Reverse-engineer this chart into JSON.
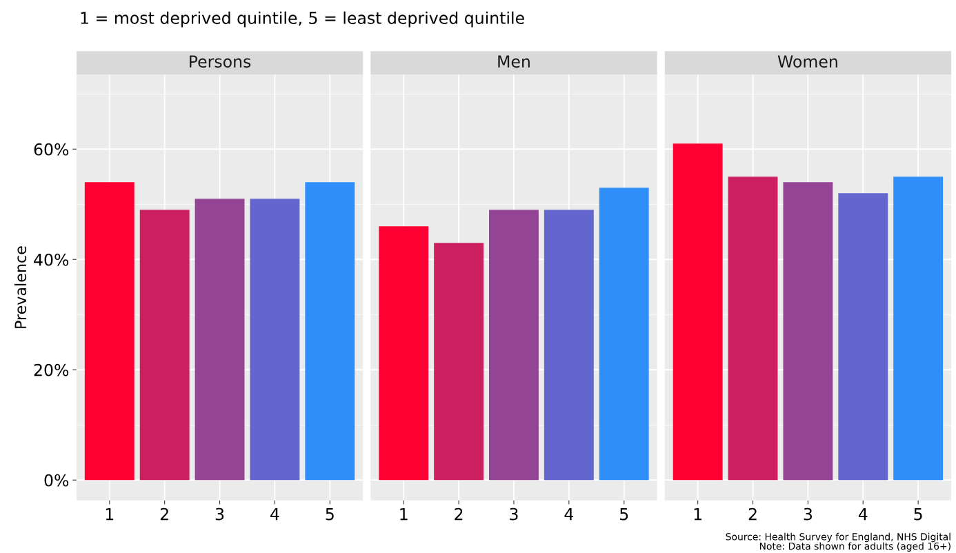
{
  "chart_data": [
    {
      "type": "bar",
      "title": "Persons",
      "subtitle": "1 = most deprived quintile, 5 = least deprived quintile",
      "ylabel": "Prevalence",
      "categories": [
        "1",
        "2",
        "3",
        "4",
        "5"
      ],
      "values": [
        54,
        49,
        51,
        51,
        54
      ],
      "colors": [
        "#ff0033",
        "#cc2060",
        "#944494",
        "#6366cc",
        "#2e8ff8"
      ],
      "ylim": [
        -3.7,
        73.5
      ],
      "yticks": [
        {
          "value": 0,
          "label": "0%"
        },
        {
          "value": 20,
          "label": "20%"
        },
        {
          "value": 40,
          "label": "40%"
        },
        {
          "value": 60,
          "label": "60%"
        }
      ],
      "grid": true
    },
    {
      "type": "bar",
      "title": "Men",
      "categories": [
        "1",
        "2",
        "3",
        "4",
        "5"
      ],
      "values": [
        46,
        43,
        49,
        49,
        53
      ],
      "colors": [
        "#ff0033",
        "#cc2060",
        "#944494",
        "#6366cc",
        "#2e8ff8"
      ],
      "ylim": [
        -3.7,
        73.5
      ],
      "yticks": [
        0,
        20,
        40,
        60
      ],
      "grid": true,
      "tick_labels": "x"
    },
    {
      "type": "bar",
      "title": "Women",
      "categories": [
        "1",
        "2",
        "3",
        "4",
        "5"
      ],
      "values": [
        61,
        55,
        54,
        52,
        55
      ],
      "colors": [
        "#ff0033",
        "#cc2060",
        "#944494",
        "#6366cc",
        "#2e8ff8"
      ],
      "ylim": [
        -3.7,
        73.5
      ],
      "yticks": [
        0,
        20,
        40,
        60
      ],
      "grid": true,
      "tick_labels": "x",
      "annotations": [
        "Source: Health Survey for England, NHS Digital",
        "Note: Data shown for adults (aged 16+)"
      ]
    }
  ]
}
